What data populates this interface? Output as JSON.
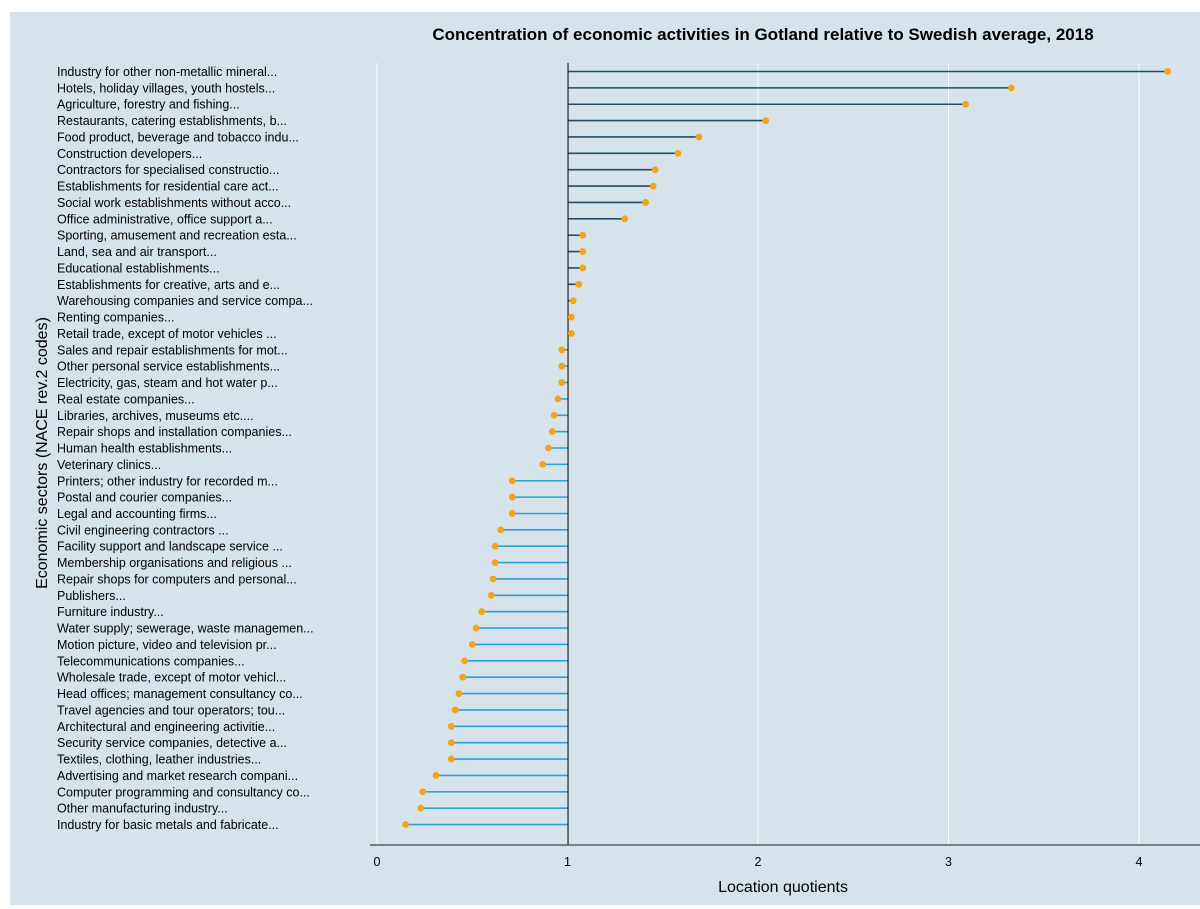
{
  "chart_data": {
    "type": "lollipop",
    "title": "Concentration of economic activities in Gotland relative to Swedish average, 2018",
    "xlabel": "Location quotients",
    "ylabel": "Economic sectors (NACE rev.2 codes)",
    "xlim": [
      0,
      4.2
    ],
    "xticks": [
      "0",
      "1",
      "2",
      "3",
      "4"
    ],
    "baseline": 1,
    "grid": "vertical",
    "colors": {
      "background": "#d6e3eb",
      "line_above_baseline": "#1f4e66",
      "line_below_baseline": "#29a3d6",
      "point": "#f5a31a",
      "baseline": "#1a1a1a",
      "gridline": "#ffffff"
    },
    "categories": [
      "Industry for other non-metallic mineral...",
      "Hotels, holiday villages, youth hostels...",
      "Agriculture, forestry and fishing...",
      "Restaurants, catering establishments, b...",
      "Food product, beverage and tobacco indu...",
      "Construction developers...",
      "Contractors for specialised constructio...",
      "Establishments for residential care act...",
      "Social work establishments without acco...",
      "Office administrative, office support a...",
      "Sporting, amusement and recreation esta...",
      "Land, sea and air transport...",
      "Educational establishments...",
      "Establishments for creative, arts and e...",
      "Warehousing companies and service compa...",
      "Renting companies...",
      "Retail trade, except of motor vehicles ...",
      "Sales and repair establishments for mot...",
      "Other personal service establishments...",
      "Electricity, gas, steam and hot water p...",
      "Real estate companies...",
      "Libraries, archives, museums etc....",
      "Repair shops and installation companies...",
      "Human health establishments...",
      "Veterinary clinics...",
      "Printers; other industry for recorded m...",
      "Postal and courier companies...",
      "Legal and accounting firms...",
      "Civil engineering contractors         ...",
      "Facility support and landscape service ...",
      "Membership organisations and religious ...",
      "Repair shops for computers and personal...",
      "Publishers...",
      "Furniture industry...",
      "Water supply; sewerage, waste managemen...",
      "Motion picture, video and television pr...",
      "Telecommunications companies...",
      "Wholesale trade, except of motor vehicl...",
      "Head offices; management consultancy co...",
      "Travel agencies and tour operators; tou...",
      "Architectural and engineering activitie...",
      "Security service companies, detective a...",
      "Textiles, clothing, leather industries...",
      "Advertising and market research compani...",
      "Computer programming and consultancy co...",
      "Other manufacturing industry...",
      "Industry for basic metals and fabricate..."
    ],
    "values": [
      4.15,
      3.33,
      3.09,
      2.04,
      1.69,
      1.58,
      1.46,
      1.45,
      1.41,
      1.3,
      1.08,
      1.08,
      1.08,
      1.06,
      1.03,
      1.02,
      1.02,
      0.97,
      0.97,
      0.97,
      0.95,
      0.93,
      0.92,
      0.9,
      0.87,
      0.71,
      0.71,
      0.71,
      0.65,
      0.62,
      0.62,
      0.61,
      0.6,
      0.55,
      0.52,
      0.5,
      0.46,
      0.45,
      0.43,
      0.41,
      0.39,
      0.39,
      0.39,
      0.31,
      0.24,
      0.23,
      0.15
    ]
  }
}
